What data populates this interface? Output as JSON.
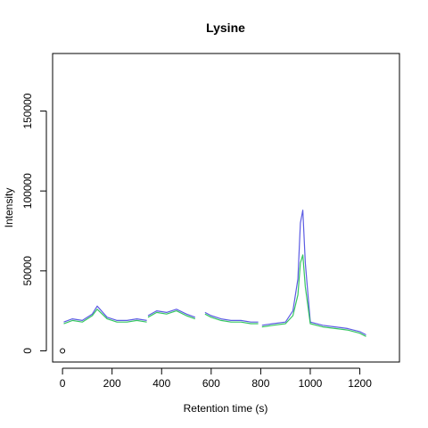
{
  "chart_data": {
    "type": "line",
    "title": "Lysine",
    "xlabel": "Retention time (s)",
    "ylabel": "Intensity",
    "xlim": [
      -40,
      1360
    ],
    "ylim": [
      -7000,
      186000
    ],
    "x_ticks": [
      0,
      200,
      400,
      600,
      800,
      1000,
      1200
    ],
    "y_ticks": [
      0,
      50000,
      100000,
      150000
    ],
    "grid": false,
    "legend": "none",
    "series": [
      {
        "color": "#4a4ae0",
        "segments": [
          {
            "x": [
              5,
              40,
              80,
              120,
              140,
              180,
              220,
              260,
              300,
              340
            ],
            "y": [
              18000,
              20000,
              19000,
              23000,
              28000,
              21000,
              19000,
              19000,
              20000,
              19000
            ]
          },
          {
            "x": [
              345,
              380,
              420,
              460,
              500,
              535
            ],
            "y": [
              22000,
              25000,
              24000,
              26000,
              23000,
              21000
            ]
          },
          {
            "x": [
              575,
              600,
              640,
              680,
              720,
              760,
              790
            ],
            "y": [
              24000,
              22000,
              20000,
              19000,
              19000,
              18000,
              18000
            ]
          },
          {
            "x": [
              805,
              850,
              900,
              930,
              950,
              960,
              970,
              980,
              1000,
              1050,
              1100,
              1150,
              1200,
              1225
            ],
            "y": [
              16000,
              17000,
              18000,
              25000,
              45000,
              80000,
              88000,
              55000,
              18000,
              16000,
              15000,
              14000,
              12000,
              10000
            ]
          }
        ]
      },
      {
        "color": "#20c050",
        "segments": [
          {
            "x": [
              5,
              40,
              80,
              120,
              140,
              180,
              220,
              260,
              300,
              340
            ],
            "y": [
              17000,
              19000,
              18000,
              22000,
              26000,
              20000,
              18000,
              18000,
              19000,
              18000
            ]
          },
          {
            "x": [
              345,
              380,
              420,
              460,
              500,
              535
            ],
            "y": [
              21000,
              24000,
              23000,
              25000,
              22000,
              20000
            ]
          },
          {
            "x": [
              575,
              600,
              640,
              680,
              720,
              760,
              790
            ],
            "y": [
              23000,
              21000,
              19000,
              18000,
              18000,
              17000,
              17000
            ]
          },
          {
            "x": [
              805,
              850,
              900,
              930,
              950,
              960,
              970,
              980,
              1000,
              1050,
              1100,
              1150,
              1200,
              1225
            ],
            "y": [
              15000,
              16000,
              17000,
              22000,
              35000,
              55000,
              60000,
              40000,
              17000,
              15000,
              14000,
              13000,
              11000,
              9000
            ]
          }
        ]
      }
    ],
    "points": [
      {
        "x": 0,
        "y": 0
      }
    ]
  }
}
